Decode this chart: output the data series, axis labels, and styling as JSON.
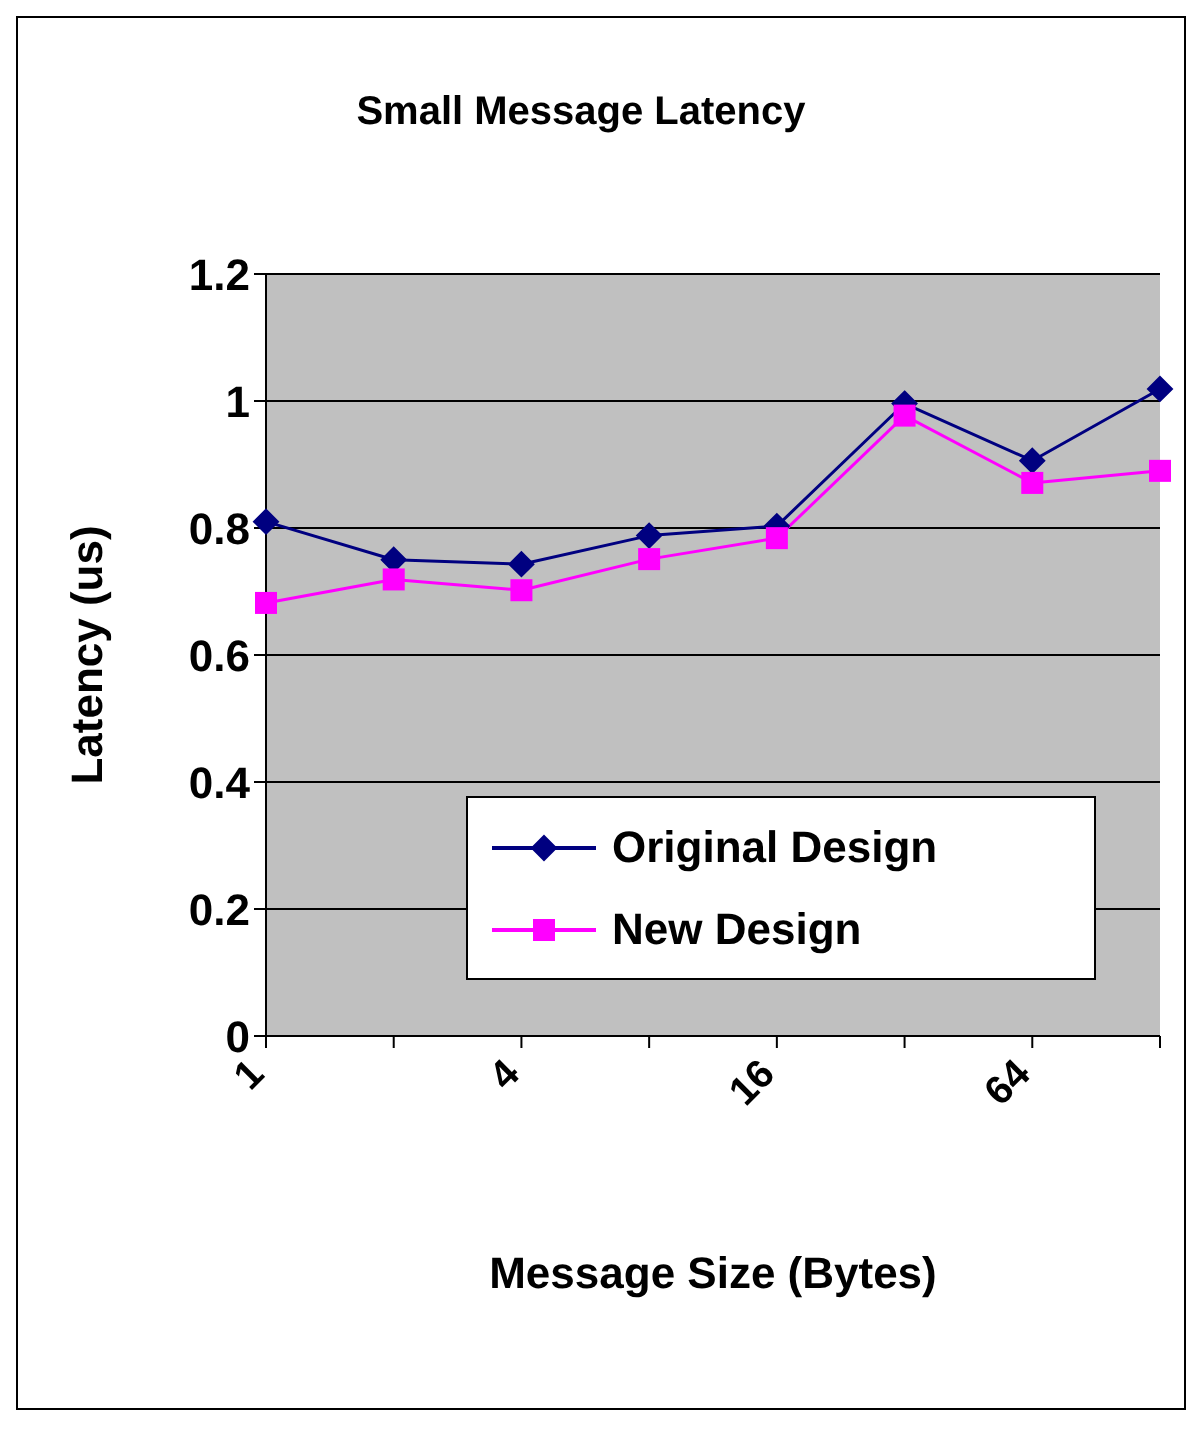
{
  "chart_data": {
    "type": "line",
    "title": "Small Message Latency",
    "xlabel": "Message Size (Bytes)",
    "ylabel": "Latency (us)",
    "categories": [
      "1",
      null,
      "4",
      null,
      "16",
      null,
      "64",
      null
    ],
    "series": [
      {
        "name": "Original Design",
        "color": "#000080",
        "marker": "diamond",
        "values": [
          0.81,
          0.75,
          0.743,
          0.788,
          0.803,
          0.996,
          0.906,
          1.019
        ]
      },
      {
        "name": "New Design",
        "color": "#ff00ff",
        "marker": "square",
        "values": [
          0.682,
          0.719,
          0.702,
          0.751,
          0.784,
          0.977,
          0.871,
          0.89
        ]
      }
    ],
    "ylim": [
      0,
      1.2
    ],
    "yticks": [
      0,
      0.2,
      0.4,
      0.6,
      0.8,
      1,
      1.2
    ],
    "grid": "y",
    "legend": "bottom right"
  }
}
